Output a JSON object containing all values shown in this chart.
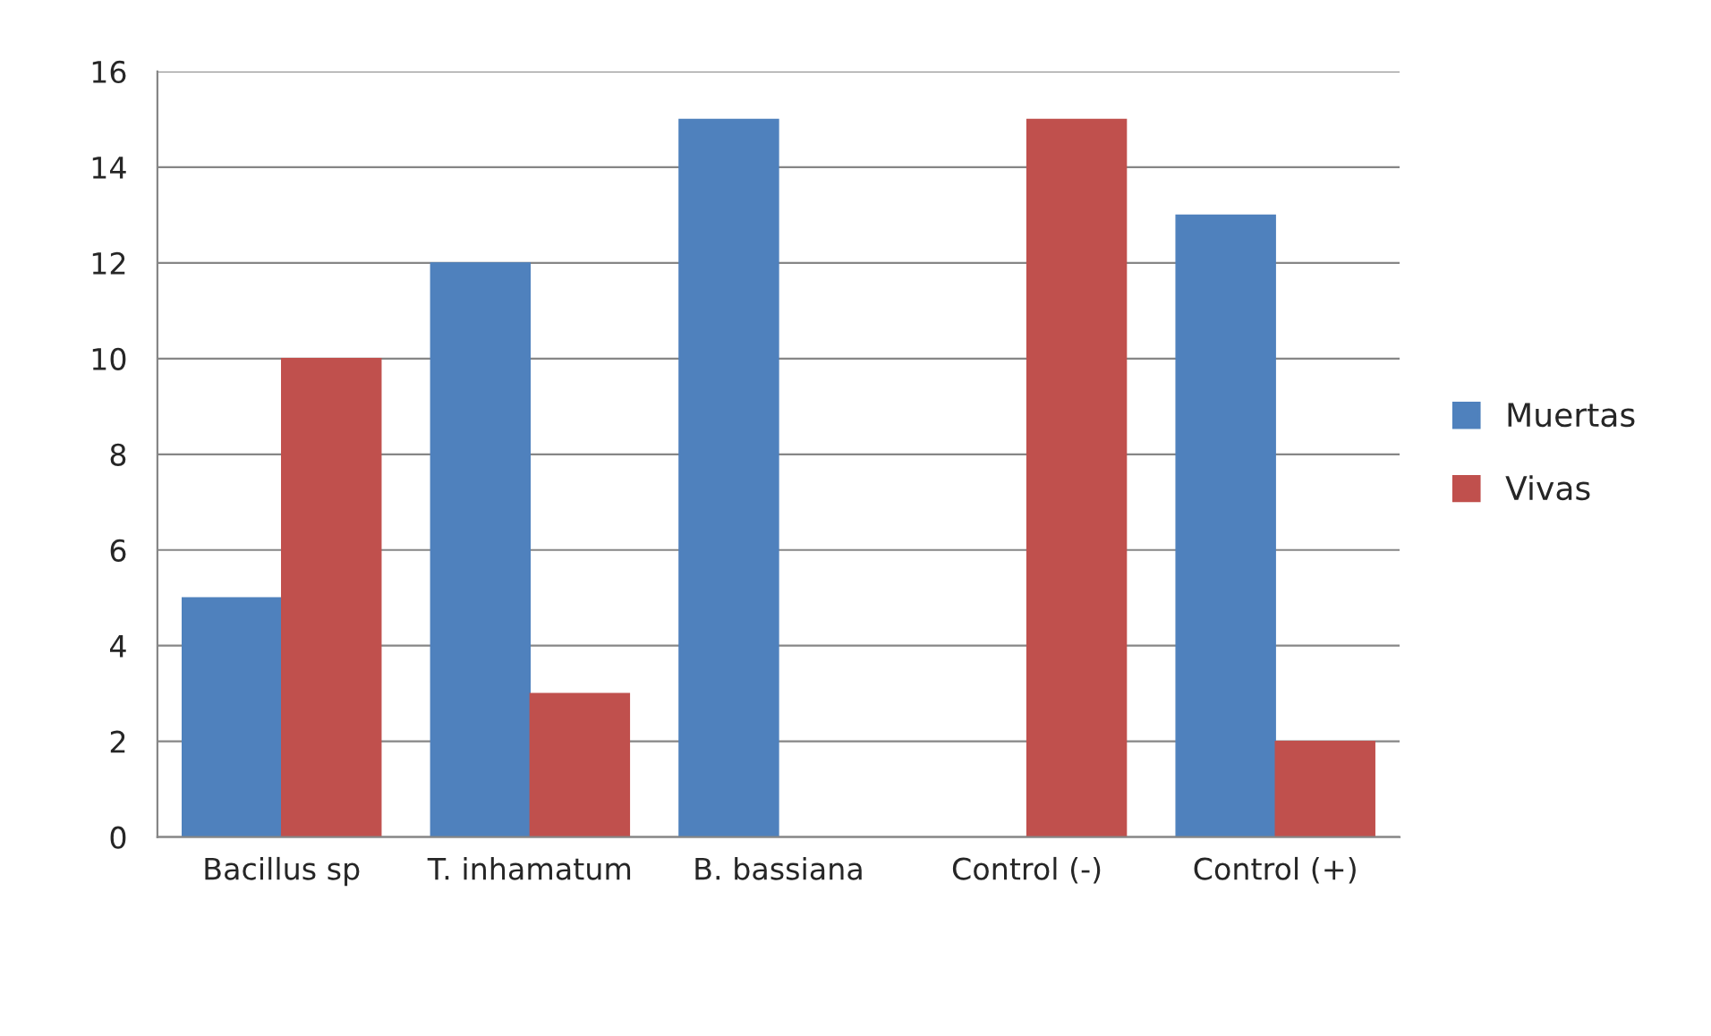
{
  "chart_data": {
    "type": "bar",
    "categories": [
      "Bacillus sp",
      "T. inhamatum",
      "B. bassiana",
      "Control (-)",
      "Control (+)"
    ],
    "series": [
      {
        "name": "Muertas",
        "color": "#4f81bd",
        "values": [
          5,
          12,
          15,
          0,
          13
        ]
      },
      {
        "name": "Vivas",
        "color": "#c0504d",
        "values": [
          10,
          3,
          0,
          15,
          2
        ]
      }
    ],
    "ylim": [
      0,
      16
    ],
    "yticks": [
      0,
      2,
      4,
      6,
      8,
      10,
      12,
      14,
      16
    ],
    "grid": "y",
    "legend": "right"
  }
}
